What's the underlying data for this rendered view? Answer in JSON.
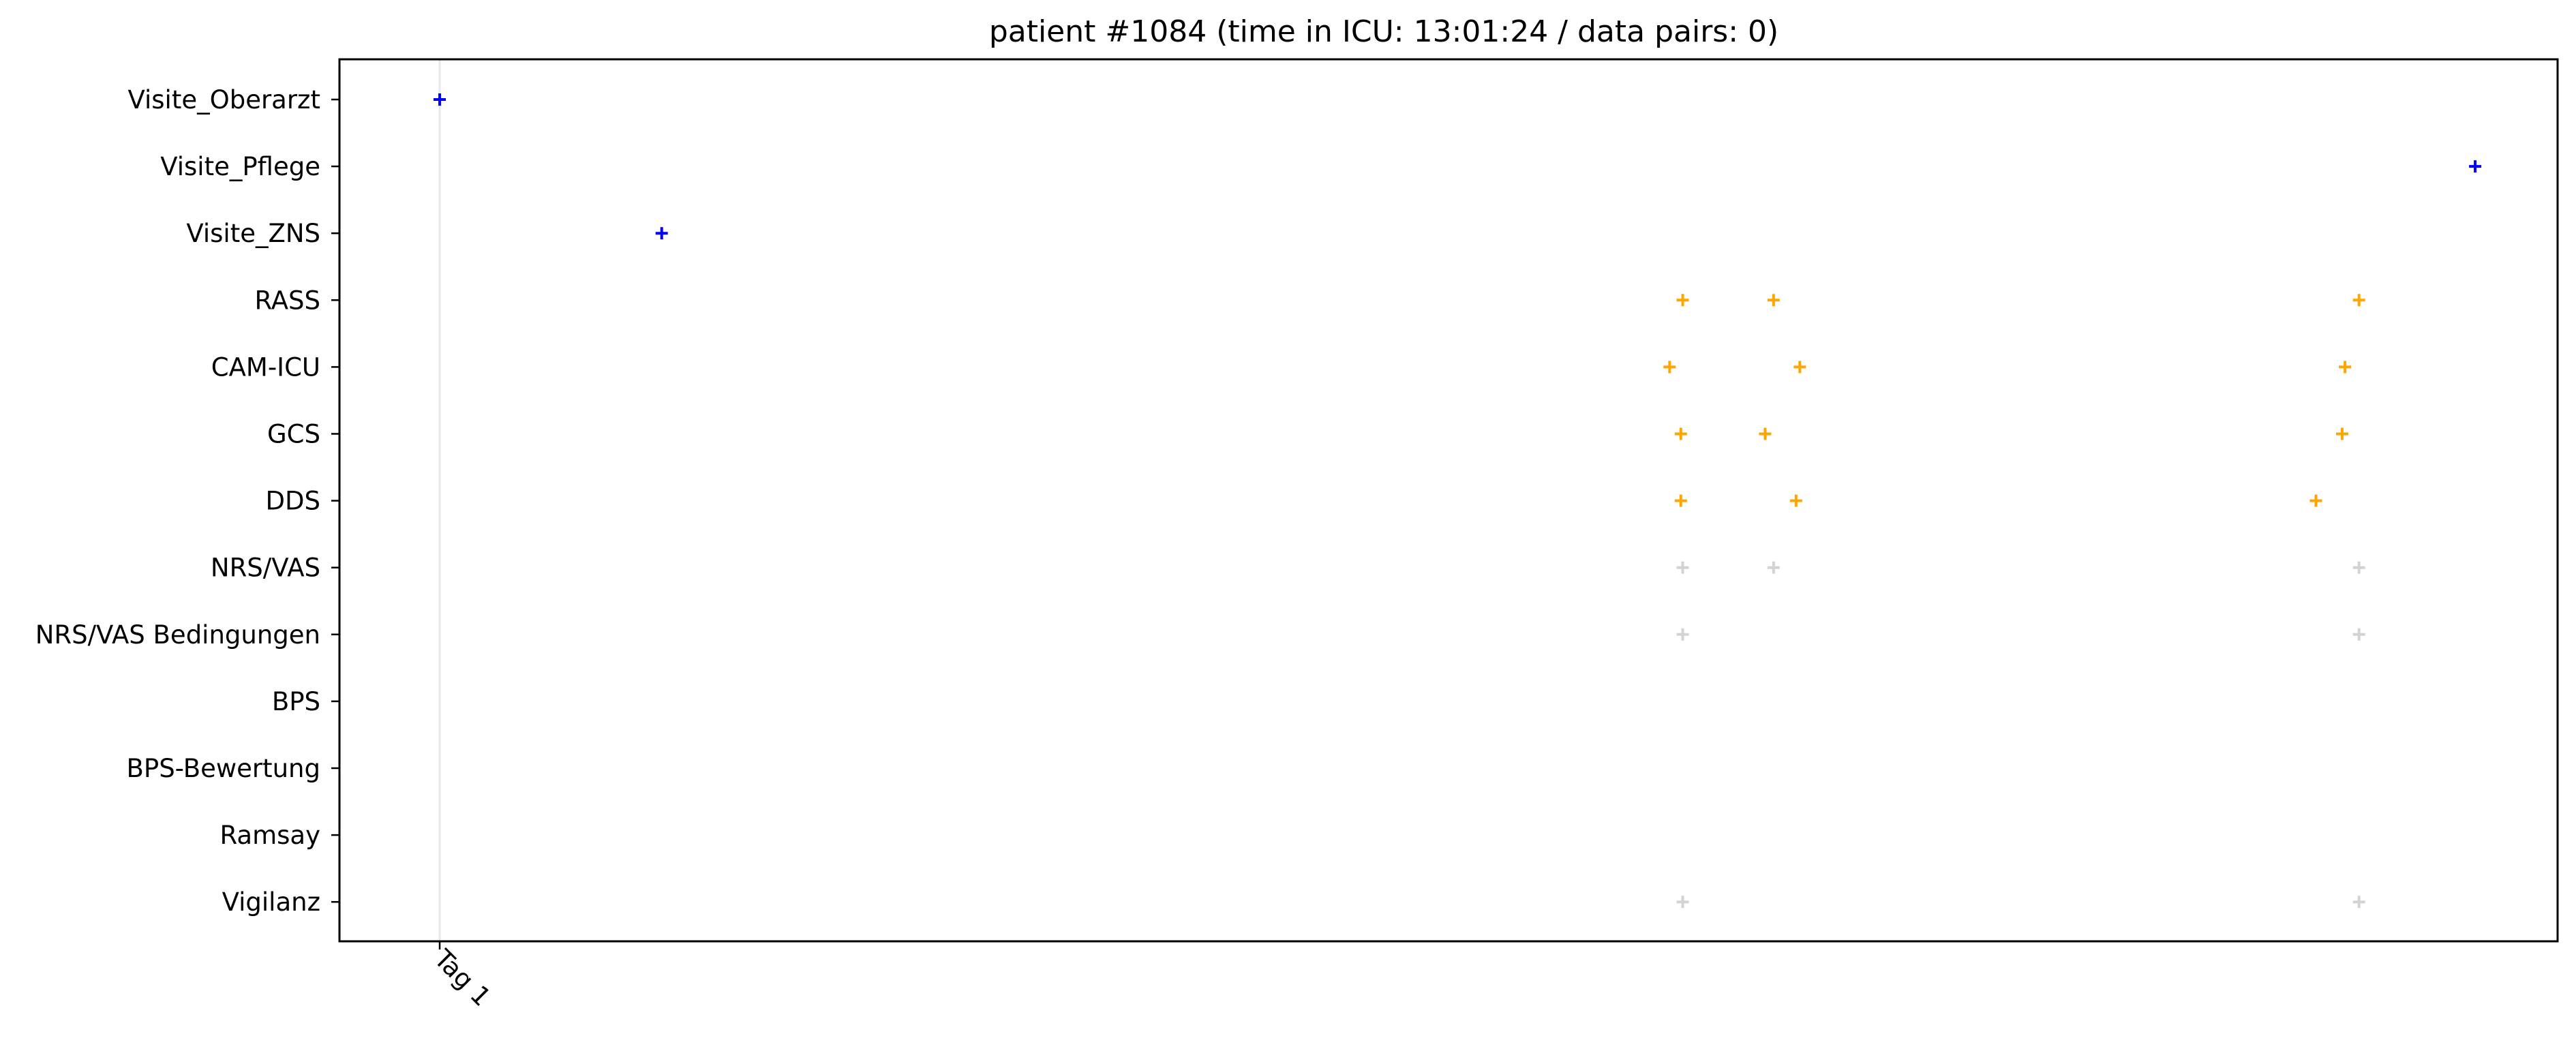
{
  "chart_data": {
    "type": "scatter",
    "title": "patient #1084 (time in ICU: 13:01:24 / data pairs: 0)",
    "xlabel": "",
    "ylabel": "",
    "marker": "+",
    "grid": false,
    "categories": [
      "Visite_Oberarzt",
      "Visite_Pflege",
      "Visite_ZNS",
      "RASS",
      "CAM-ICU",
      "GCS",
      "DDS",
      "NRS/VAS",
      "NRS/VAS Bedingungen",
      "BPS",
      "BPS-Bewertung",
      "Ramsay",
      "Vigilanz"
    ],
    "x_ticks": [
      {
        "label": "Tag 1",
        "value": 0
      }
    ],
    "x_unit": "hours after ICU admission",
    "xlim": [
      -1.07,
      22.61
    ],
    "vline_x": 0,
    "colors": {
      "visit": "#0000ff",
      "assessment": "#ffa500",
      "inactive": "#d3d3d3",
      "vline": "#e8e8e8"
    },
    "series": [
      {
        "category": "Visite_Oberarzt",
        "color_key": "visit",
        "x": [
          0.0
        ]
      },
      {
        "category": "Visite_Pflege",
        "color_key": "visit",
        "x": [
          21.73
        ]
      },
      {
        "category": "Visite_ZNS",
        "color_key": "visit",
        "x": [
          2.37
        ]
      },
      {
        "category": "RASS",
        "color_key": "assessment",
        "x": [
          13.27,
          14.24,
          20.49
        ]
      },
      {
        "category": "CAM-ICU",
        "color_key": "assessment",
        "x": [
          13.13,
          14.52,
          20.34
        ]
      },
      {
        "category": "GCS",
        "color_key": "assessment",
        "x": [
          13.25,
          14.15,
          20.31
        ]
      },
      {
        "category": "DDS",
        "color_key": "assessment",
        "x": [
          13.25,
          14.48,
          20.03
        ]
      },
      {
        "category": "NRS/VAS",
        "color_key": "inactive",
        "x": [
          13.27,
          14.24,
          20.49
        ]
      },
      {
        "category": "NRS/VAS Bedingungen",
        "color_key": "inactive",
        "x": [
          13.27,
          20.49
        ]
      },
      {
        "category": "BPS",
        "color_key": "inactive",
        "x": []
      },
      {
        "category": "BPS-Bewertung",
        "color_key": "inactive",
        "x": []
      },
      {
        "category": "Ramsay",
        "color_key": "inactive",
        "x": []
      },
      {
        "category": "Vigilanz",
        "color_key": "inactive",
        "x": [
          13.27,
          20.49
        ]
      }
    ]
  }
}
